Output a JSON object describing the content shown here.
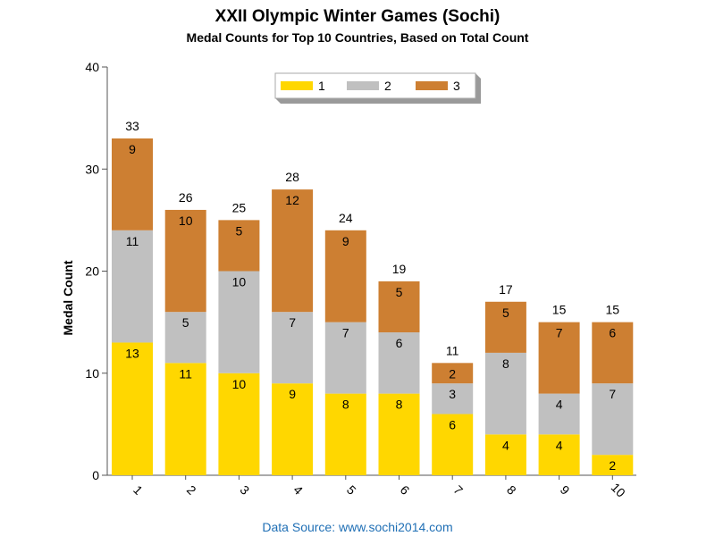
{
  "chart_data": {
    "type": "bar",
    "stacked": true,
    "title": "XXII Olympic Winter Games (Sochi)",
    "subtitle": "Medal Counts for Top 10 Countries, Based on Total Count",
    "ylabel": "Medal Count",
    "xlabel": "",
    "ylim": [
      0,
      40
    ],
    "yticks": [
      0,
      10,
      20,
      30,
      40
    ],
    "categories": [
      "1",
      "2",
      "3",
      "4",
      "5",
      "6",
      "7",
      "8",
      "9",
      "10"
    ],
    "series": [
      {
        "name": "1",
        "color": "#FFD700",
        "values": [
          13,
          11,
          10,
          9,
          8,
          8,
          6,
          4,
          4,
          2
        ]
      },
      {
        "name": "2",
        "color": "#C0C0C0",
        "values": [
          11,
          5,
          10,
          7,
          7,
          6,
          3,
          8,
          4,
          7
        ]
      },
      {
        "name": "3",
        "color": "#CD7F32",
        "values": [
          9,
          10,
          5,
          12,
          9,
          5,
          2,
          5,
          7,
          6
        ]
      }
    ],
    "totals": [
      33,
      26,
      25,
      28,
      24,
      19,
      11,
      17,
      15,
      15
    ],
    "legend_position": "top-center",
    "grid": false,
    "source": "Data Source: www.sochi2014.com"
  }
}
